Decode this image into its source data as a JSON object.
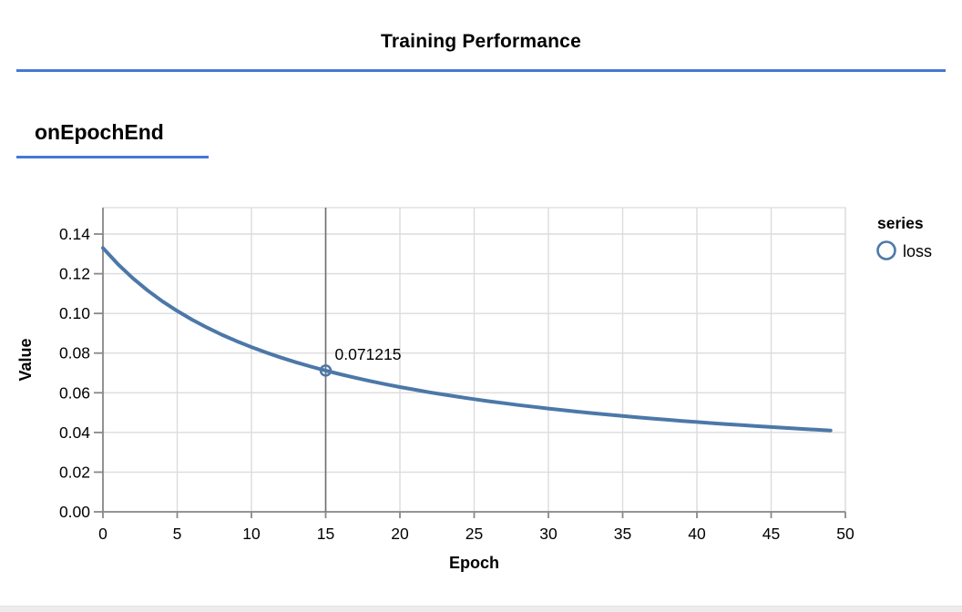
{
  "header": {
    "title": "Training Performance"
  },
  "section": {
    "title": "onEpochEnd"
  },
  "colors": {
    "accent": "#4479d4",
    "line": "#4c78a8",
    "grid": "#dcdcdc",
    "border": "#dddddd",
    "axis": "#888888",
    "rule": "#6e6e6e",
    "text": "#000000"
  },
  "chart_data": {
    "type": "line",
    "title": "",
    "xlabel": "Epoch",
    "ylabel": "Value",
    "xlim": [
      0,
      50
    ],
    "ylim": [
      0,
      0.153
    ],
    "grid": true,
    "x_ticks": [
      0,
      5,
      10,
      15,
      20,
      25,
      30,
      35,
      40,
      45,
      50
    ],
    "y_ticks": [
      {
        "value": 0.0,
        "label": "0.00"
      },
      {
        "value": 0.02,
        "label": "0.02"
      },
      {
        "value": 0.04,
        "label": "0.04"
      },
      {
        "value": 0.06,
        "label": "0.06"
      },
      {
        "value": 0.08,
        "label": "0.08"
      },
      {
        "value": 0.1,
        "label": "0.10"
      },
      {
        "value": 0.12,
        "label": "0.12"
      },
      {
        "value": 0.14,
        "label": "0.14"
      }
    ],
    "legend": {
      "title": "series",
      "position": "right",
      "entries": [
        {
          "label": "loss",
          "marker": "circle-outline"
        }
      ]
    },
    "series": [
      {
        "name": "loss",
        "x": [
          0,
          1,
          2,
          3,
          4,
          5,
          6,
          7,
          8,
          9,
          10,
          11,
          12,
          13,
          14,
          15,
          16,
          17,
          18,
          19,
          20,
          21,
          22,
          23,
          24,
          25,
          26,
          27,
          28,
          29,
          30,
          31,
          32,
          33,
          34,
          35,
          36,
          37,
          38,
          39,
          40,
          41,
          42,
          43,
          44,
          45,
          46,
          47,
          48,
          49
        ],
        "values": [
          0.132998,
          0.124891,
          0.117833,
          0.111632,
          0.106141,
          0.101244,
          0.096851,
          0.092886,
          0.089291,
          0.086016,
          0.08302,
          0.080269,
          0.077734,
          0.07539,
          0.073217,
          0.071215,
          0.069314,
          0.067554,
          0.065907,
          0.06436,
          0.062906,
          0.061537,
          0.060244,
          0.059023,
          0.057867,
          0.056771,
          0.05573,
          0.054741,
          0.0538,
          0.052903,
          0.052047,
          0.05123,
          0.050448,
          0.049701,
          0.048984,
          0.048297,
          0.047638,
          0.047006,
          0.046397,
          0.045813,
          0.045249,
          0.044707,
          0.044184,
          0.04368,
          0.043193,
          0.042723,
          0.042268,
          0.041829,
          0.041404,
          0.040992
        ]
      }
    ],
    "hover": {
      "x": 15,
      "value": 0.071215,
      "label": "0.071215"
    }
  }
}
